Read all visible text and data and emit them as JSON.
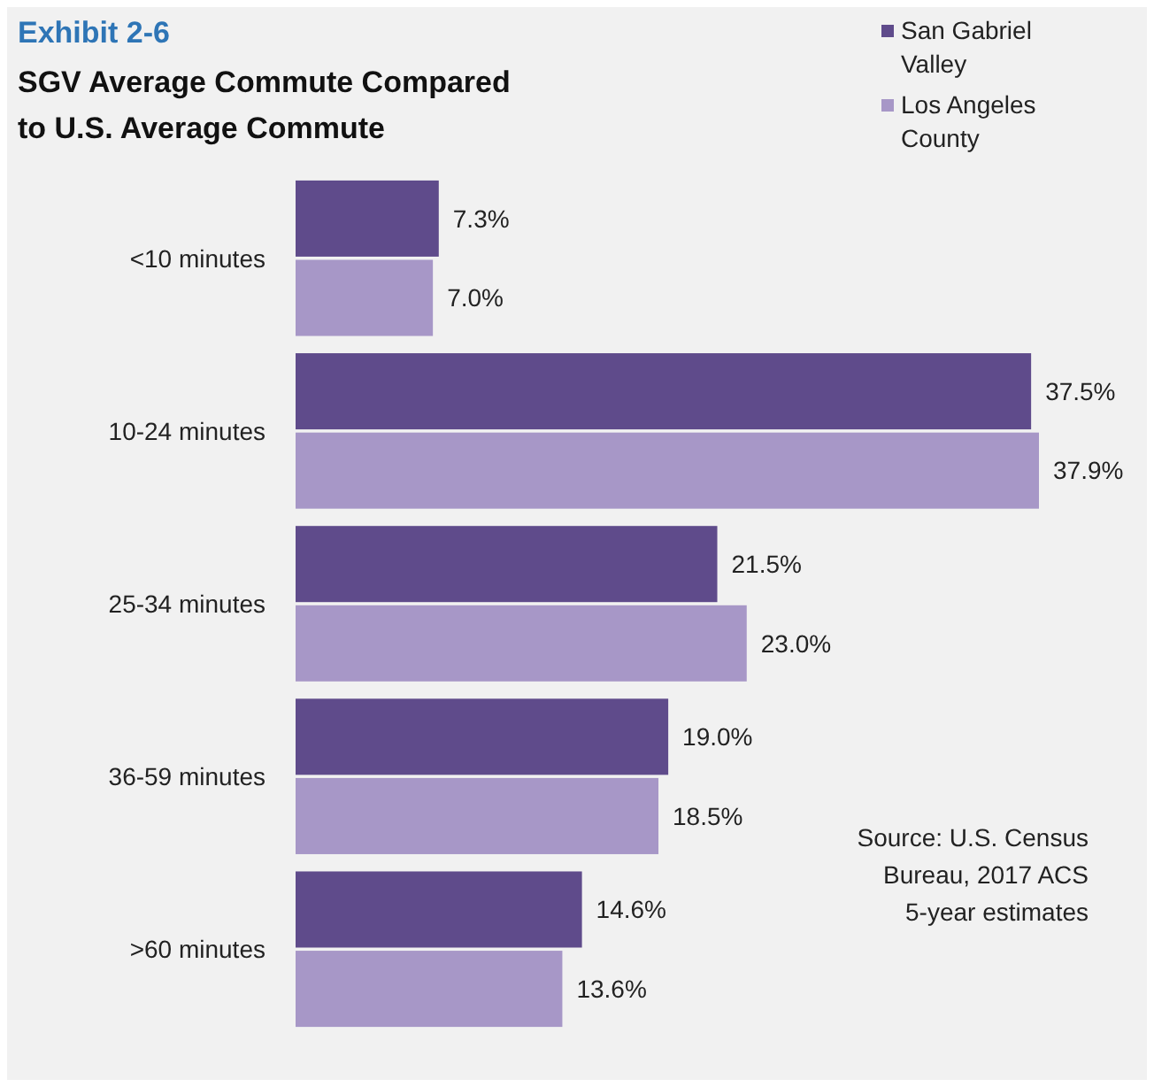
{
  "chart_data": {
    "type": "bar",
    "orientation": "horizontal",
    "title": "Exhibit 2-6",
    "subtitle": "SGV Average Commute Compared to U.S. Average Commute",
    "categories": [
      "<10 minutes",
      "10-24 minutes",
      "25-34 minutes",
      "36-59 minutes",
      ">60 minutes"
    ],
    "series": [
      {
        "name": "San Gabriel Valley",
        "color": "#5f4b8b",
        "values": [
          7.3,
          37.5,
          21.5,
          19.0,
          14.6
        ],
        "value_labels": [
          "7.3%",
          "37.5%",
          "21.5%",
          "19.0%",
          "14.6%"
        ]
      },
      {
        "name": "Los Angeles County",
        "color": "#a797c7",
        "values": [
          7.0,
          37.9,
          23.0,
          18.5,
          13.6
        ],
        "value_labels": [
          "7.0%",
          "37.9%",
          "23.0%",
          "18.5%",
          "13.6%"
        ]
      }
    ],
    "tick_labels": "y",
    "legend": "top right",
    "annotations": [
      "Source: U.S. Census Bureau, 2017 ACS 5-year estimates"
    ]
  }
}
